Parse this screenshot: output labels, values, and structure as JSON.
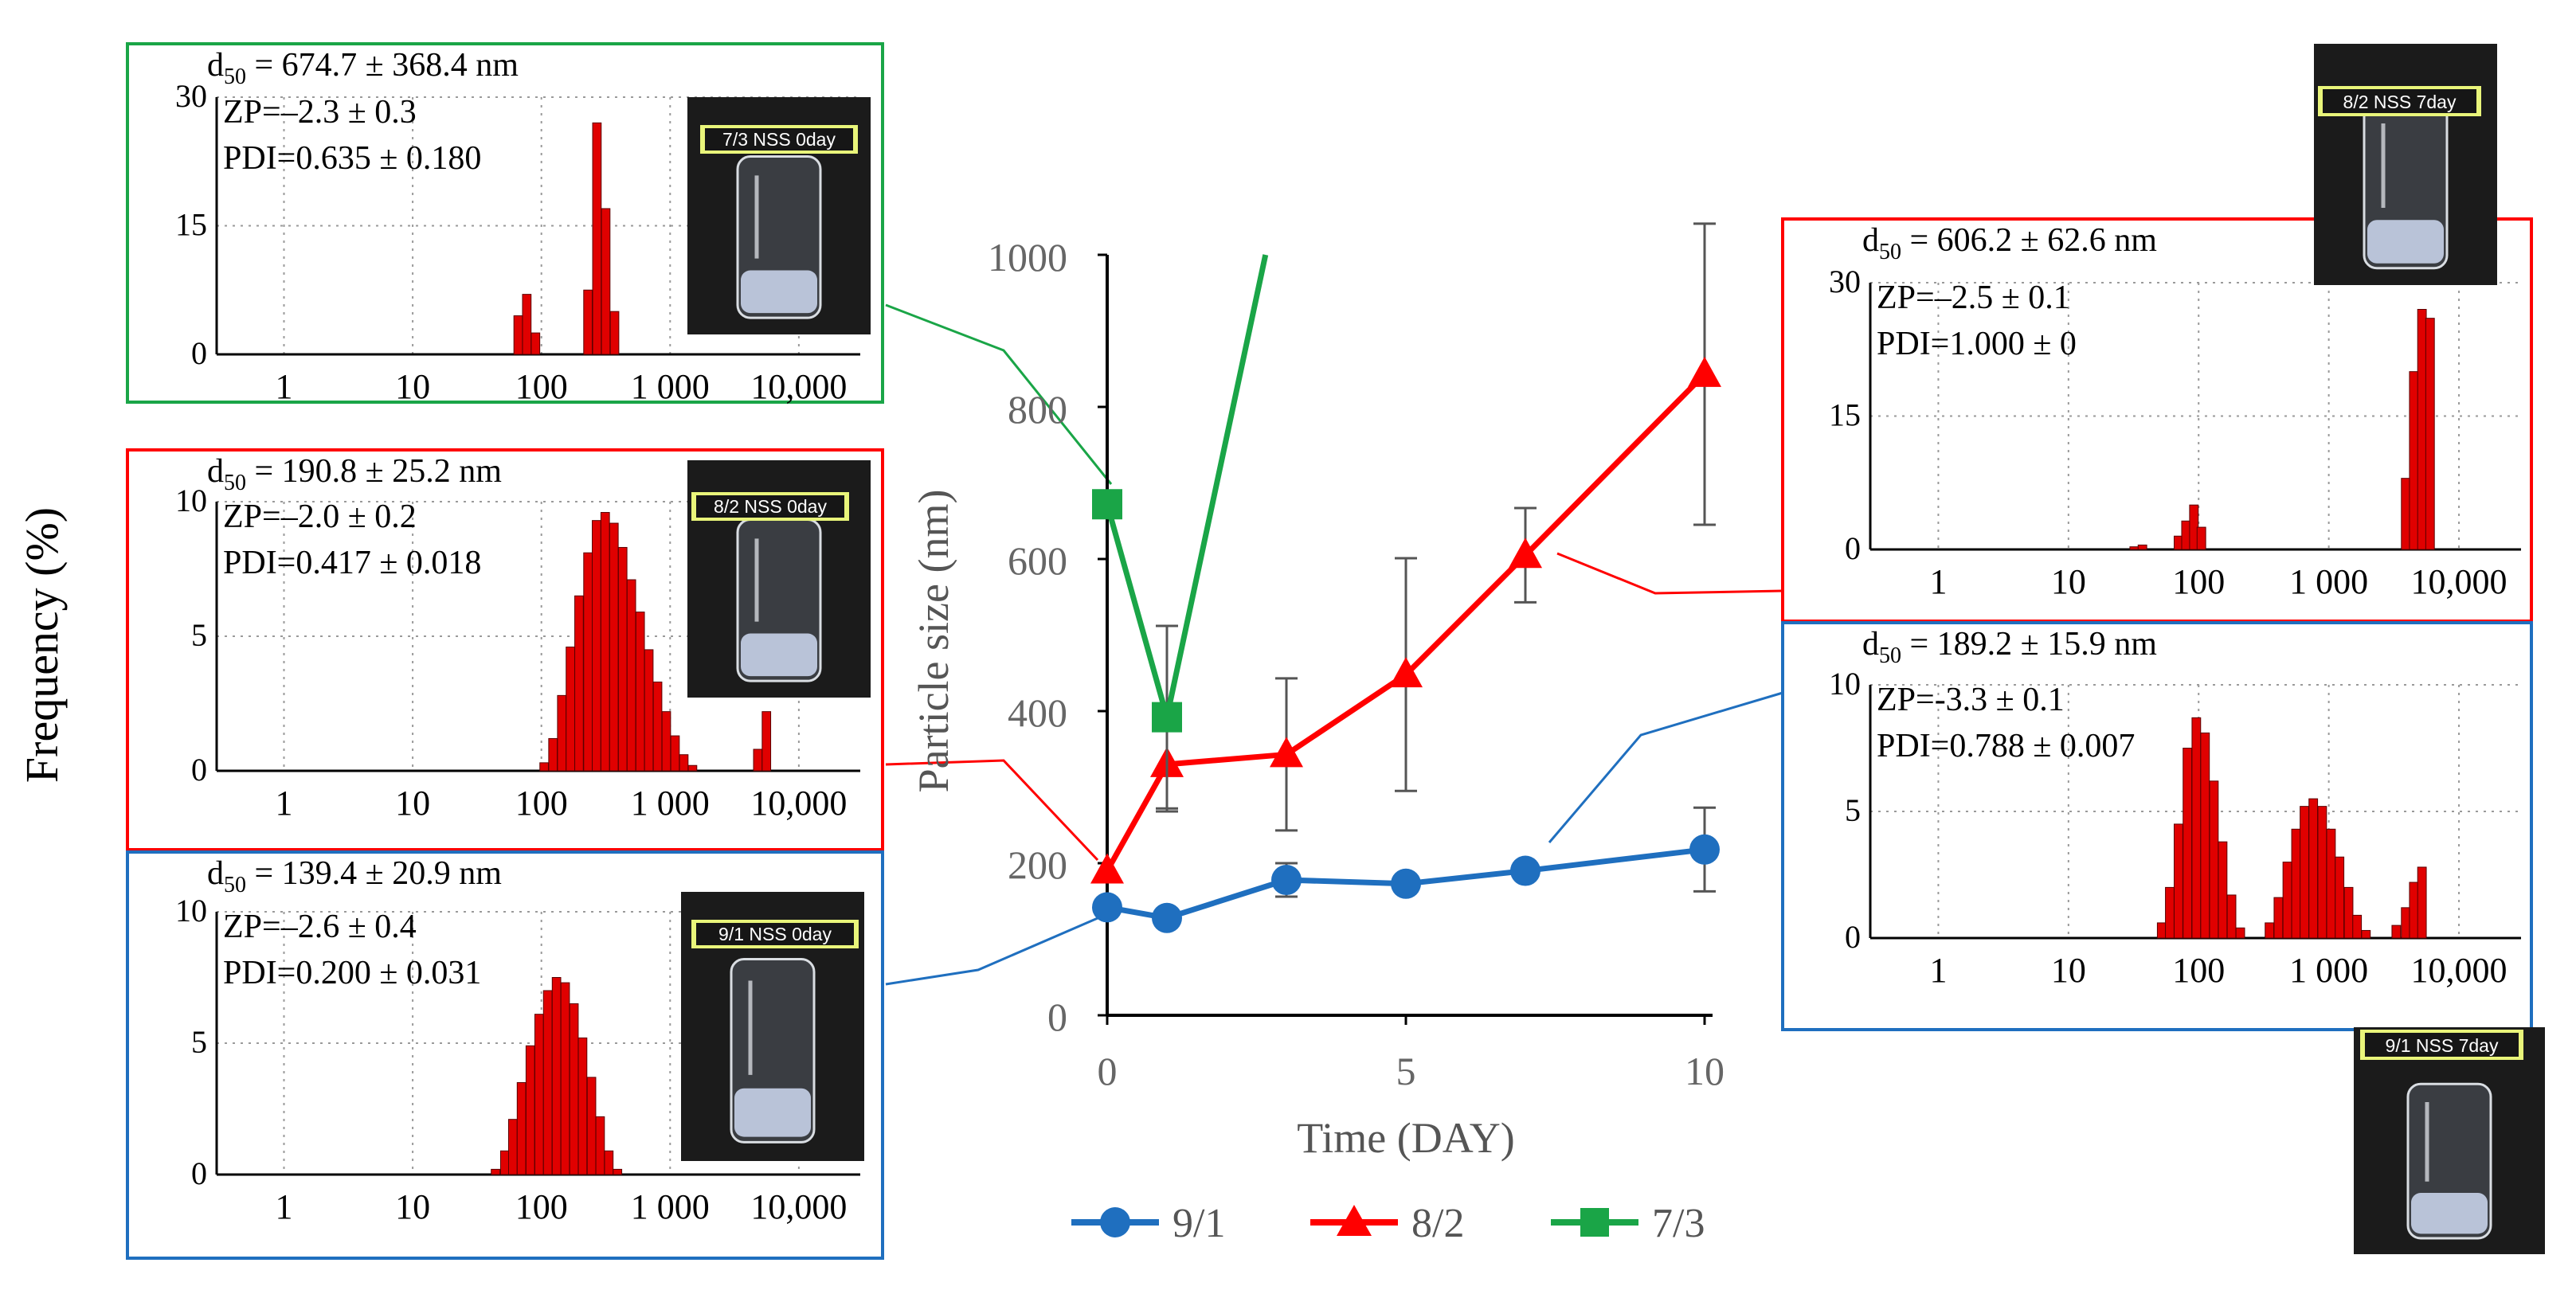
{
  "side_label": "Frequency (%)",
  "chart_data": [
    {
      "id": "main",
      "type": "line",
      "title": "",
      "xlabel": "Time (DAY)",
      "ylabel": "Particle size (nm)",
      "xlim": [
        0,
        10
      ],
      "ylim": [
        0,
        1000
      ],
      "xticks": [
        0,
        5,
        10
      ],
      "yticks": [
        0,
        200,
        400,
        600,
        800,
        1000
      ],
      "grid": false,
      "legend_position": "bottom",
      "series": [
        {
          "name": "9/1",
          "color": "#1f6fbf",
          "marker": "circle",
          "x": [
            0,
            1,
            3,
            5,
            7,
            10
          ],
          "y": [
            142,
            128,
            178,
            173,
            190,
            218
          ],
          "err": [
            0,
            0,
            22,
            0,
            0,
            55
          ]
        },
        {
          "name": "8/2",
          "color": "#ff0000",
          "marker": "triangle",
          "x": [
            0,
            1,
            3,
            5,
            7,
            10
          ],
          "y": [
            190,
            330,
            343,
            448,
            605,
            843
          ],
          "err": [
            0,
            62,
            100,
            153,
            62,
            198
          ]
        },
        {
          "name": "7/3",
          "color": "#1aa547",
          "marker": "square",
          "x": [
            0,
            1,
            2.65
          ],
          "y": [
            672,
            392,
            1000
          ],
          "err": [
            0,
            120,
            0
          ],
          "marker_mask": [
            true,
            true,
            false
          ]
        }
      ]
    },
    {
      "id": "h73d0",
      "type": "bar",
      "title": "7/3 NSS 0day",
      "xlabel": "",
      "ylabel": "Frequency (%)",
      "xscale": "log",
      "xlim": [
        0.3,
        30000
      ],
      "ylim": [
        0,
        30
      ],
      "xtick_values": [
        1,
        10,
        100,
        1000,
        10000
      ],
      "xtick_labels": [
        "1",
        "10",
        "100",
        "1 000",
        "10,000"
      ],
      "yticks": [
        0,
        15,
        30
      ],
      "bar_color": "#e00000",
      "bin_centers": [
        66,
        77,
        90,
        230,
        270,
        316,
        370
      ],
      "values": [
        4.5,
        7,
        2.5,
        7.5,
        27,
        17,
        5
      ],
      "annotations": {
        "d50": "674.7 ± 368.4 nm",
        "zp": "ZP=–2.3 ± 0.3",
        "pdi": "PDI=0.635 ± 0.180"
      }
    },
    {
      "id": "h82d0",
      "type": "bar",
      "title": "8/2 NSS 0day",
      "xlabel": "",
      "ylabel": "Frequency (%)",
      "xscale": "log",
      "xlim": [
        0.3,
        30000
      ],
      "ylim": [
        0,
        10
      ],
      "xtick_values": [
        1,
        10,
        100,
        1000,
        10000
      ],
      "xtick_labels": [
        "1",
        "10",
        "100",
        "1 000",
        "10,000"
      ],
      "yticks": [
        0,
        5,
        10
      ],
      "bar_color": "#e00000",
      "bin_centers": [
        105,
        123,
        144,
        168,
        196,
        230,
        268,
        313,
        366,
        428,
        500,
        585,
        683,
        799,
        934,
        1092,
        1277,
        1493,
        4800,
        5600
      ],
      "values": [
        0.3,
        1.2,
        2.8,
        4.6,
        6.5,
        8.1,
        9.3,
        9.6,
        9.2,
        8.3,
        7.1,
        5.9,
        4.5,
        3.3,
        2.2,
        1.3,
        0.6,
        0.2,
        0.8,
        2.2
      ],
      "annotations": {
        "d50": "190.8 ± 25.2 nm",
        "zp": "ZP=–2.0 ± 0.2",
        "pdi": "PDI=0.417 ± 0.018"
      }
    },
    {
      "id": "h91d0",
      "type": "bar",
      "title": "9/1 NSS 0day",
      "xlabel": "",
      "ylabel": "Frequency (%)",
      "xscale": "log",
      "xlim": [
        0.3,
        30000
      ],
      "ylim": [
        0,
        10
      ],
      "xtick_values": [
        1,
        10,
        100,
        1000,
        10000
      ],
      "xtick_labels": [
        "1",
        "10",
        "100",
        "1 000",
        "10,000"
      ],
      "yticks": [
        0,
        5,
        10
      ],
      "bar_color": "#e00000",
      "bin_centers": [
        44,
        52,
        60,
        70,
        82,
        96,
        112,
        131,
        153,
        179,
        209,
        245,
        286,
        334,
        390
      ],
      "values": [
        0.2,
        0.9,
        2.1,
        3.5,
        4.9,
        6.1,
        7.0,
        7.5,
        7.3,
        6.5,
        5.2,
        3.7,
        2.2,
        0.9,
        0.2
      ],
      "annotations": {
        "d50": "139.4 ± 20.9 nm",
        "zp": "ZP=–2.6 ± 0.4",
        "pdi": "PDI=0.200 ± 0.031"
      }
    },
    {
      "id": "h82d7",
      "type": "bar",
      "title": "8/2 NSS 7day",
      "xlabel": "",
      "ylabel": "Frequency (%)",
      "xscale": "log",
      "xlim": [
        0.3,
        30000
      ],
      "ylim": [
        0,
        30
      ],
      "xtick_values": [
        1,
        10,
        100,
        1000,
        10000
      ],
      "xtick_labels": [
        "1",
        "10",
        "100",
        "1 000",
        "10,000"
      ],
      "yticks": [
        0,
        15,
        30
      ],
      "bar_color": "#e00000",
      "bin_centers": [
        32,
        37,
        70,
        80,
        92,
        105,
        3900,
        4500,
        5200,
        6000
      ],
      "values": [
        0.3,
        0.5,
        1.5,
        3.2,
        5.0,
        2.5,
        8,
        20,
        27,
        26
      ],
      "annotations": {
        "d50": "606.2 ± 62.6 nm",
        "zp": "ZP=–2.5 ± 0.1",
        "pdi": "PDI=1.000 ± 0"
      }
    },
    {
      "id": "h91d7",
      "type": "bar",
      "title": "9/1 NSS 7day",
      "xlabel": "",
      "ylabel": "Frequency (%)",
      "xscale": "log",
      "xlim": [
        0.3,
        30000
      ],
      "ylim": [
        0,
        10
      ],
      "xtick_values": [
        1,
        10,
        100,
        1000,
        10000
      ],
      "xtick_labels": [
        "1",
        "10",
        "100",
        "1 000",
        "10,000"
      ],
      "yticks": [
        0,
        5,
        10
      ],
      "bar_color": "#e00000",
      "bin_centers": [
        52,
        60,
        70,
        82,
        96,
        112,
        131,
        153,
        179,
        209,
        350,
        410,
        480,
        560,
        650,
        760,
        890,
        1040,
        1210,
        1420,
        1650,
        1930,
        3300,
        3900,
        4500,
        5200
      ],
      "values": [
        0.6,
        2.0,
        4.5,
        7.5,
        8.7,
        8.1,
        6.2,
        3.8,
        1.7,
        0.4,
        0.6,
        1.6,
        3.0,
        4.3,
        5.2,
        5.5,
        5.2,
        4.3,
        3.2,
        2.0,
        0.9,
        0.3,
        0.5,
        1.2,
        2.2,
        2.8
      ],
      "annotations": {
        "d50": "189.2 ± 15.9 nm",
        "zp": "ZP=-3.3 ± 0.1",
        "pdi": "PDI=0.788 ± 0.007"
      }
    }
  ]
}
